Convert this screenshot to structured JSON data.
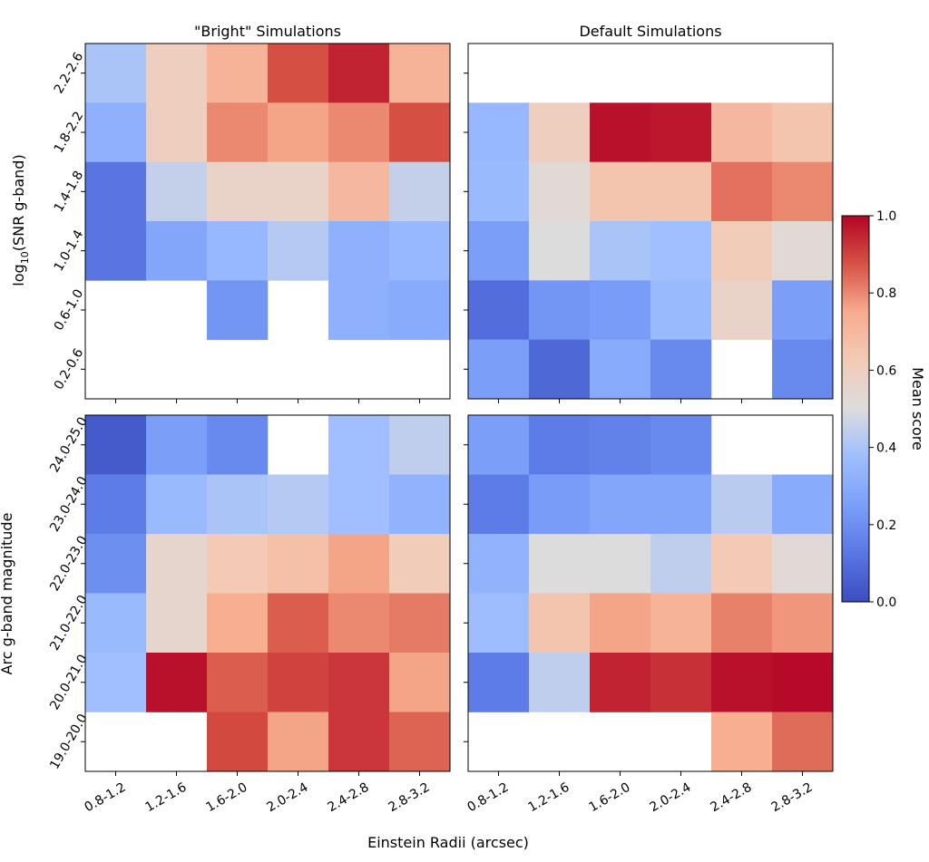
{
  "chart_data": [
    {
      "type": "heatmap",
      "id": "top-left",
      "title": "\"Bright\" Simulations",
      "ylabel_pre": "log",
      "ylabel_sub": "10",
      "ylabel_post": "(SNR g-band)",
      "x_categories": [
        "0.8-1.2",
        "1.2-1.6",
        "1.6-2.0",
        "2.0-2.4",
        "2.4-2.8",
        "2.8-3.2"
      ],
      "y_categories": [
        "2.2-2.6",
        "1.8-2.2",
        "1.4-1.8",
        "1.0-1.4",
        "0.6-1.0",
        "0.2-0.6"
      ],
      "values": [
        [
          0.4,
          0.6,
          0.72,
          0.88,
          0.95,
          0.72
        ],
        [
          0.32,
          0.6,
          0.8,
          0.76,
          0.8,
          0.88
        ],
        [
          0.12,
          0.45,
          0.57,
          0.57,
          0.7,
          0.45
        ],
        [
          0.12,
          0.28,
          0.35,
          0.42,
          0.32,
          0.35
        ],
        [
          null,
          null,
          0.22,
          null,
          0.32,
          0.3
        ],
        [
          null,
          null,
          null,
          null,
          null,
          null
        ]
      ]
    },
    {
      "type": "heatmap",
      "id": "top-right",
      "title": "Default Simulations",
      "x_categories": [
        "0.8-1.2",
        "1.2-1.6",
        "1.6-2.0",
        "2.0-2.4",
        "2.4-2.8",
        "2.8-3.2"
      ],
      "y_categories": [
        "2.2-2.6",
        "1.8-2.2",
        "1.4-1.8",
        "1.0-1.4",
        "0.6-1.0",
        "0.2-0.6"
      ],
      "values": [
        [
          null,
          null,
          null,
          null,
          null,
          null
        ],
        [
          0.35,
          0.6,
          0.98,
          0.97,
          0.7,
          0.65
        ],
        [
          0.36,
          0.52,
          0.65,
          0.65,
          0.83,
          0.8
        ],
        [
          0.25,
          0.5,
          0.4,
          0.38,
          0.62,
          0.52
        ],
        [
          0.1,
          0.22,
          0.24,
          0.36,
          0.57,
          0.25
        ],
        [
          0.25,
          0.08,
          0.3,
          0.18,
          null,
          0.18
        ]
      ]
    },
    {
      "type": "heatmap",
      "id": "bottom-left",
      "ylabel": "Arc g-band magnitude",
      "x_categories": [
        "0.8-1.2",
        "1.2-1.6",
        "1.6-2.0",
        "2.0-2.4",
        "2.4-2.8",
        "2.8-3.2"
      ],
      "y_categories": [
        "24.0-25.0",
        "23.0-24.0",
        "22.0-23.0",
        "21.0-22.0",
        "20.0-21.0",
        "19.0-20.0"
      ],
      "values": [
        [
          0.04,
          0.25,
          0.18,
          null,
          0.38,
          0.44
        ],
        [
          0.14,
          0.36,
          0.4,
          0.42,
          0.38,
          0.33
        ],
        [
          0.2,
          0.55,
          0.63,
          0.67,
          0.76,
          0.62
        ],
        [
          0.36,
          0.55,
          0.74,
          0.86,
          0.8,
          0.82
        ],
        [
          0.38,
          0.98,
          0.86,
          0.9,
          0.92,
          0.76
        ],
        [
          null,
          null,
          0.89,
          0.76,
          0.92,
          0.85
        ]
      ]
    },
    {
      "type": "heatmap",
      "id": "bottom-right",
      "x_categories": [
        "0.8-1.2",
        "1.2-1.6",
        "1.6-2.0",
        "2.0-2.4",
        "2.4-2.8",
        "2.8-3.2"
      ],
      "y_categories": [
        "24.0-25.0",
        "23.0-24.0",
        "22.0-23.0",
        "21.0-22.0",
        "20.0-21.0",
        "19.0-20.0"
      ],
      "values": [
        [
          0.25,
          0.14,
          0.16,
          0.18,
          null,
          null
        ],
        [
          0.14,
          0.24,
          0.28,
          0.28,
          0.43,
          0.3
        ],
        [
          0.33,
          0.5,
          0.5,
          0.44,
          0.63,
          0.52
        ],
        [
          0.37,
          0.65,
          0.76,
          0.72,
          0.81,
          0.78
        ],
        [
          0.14,
          0.44,
          0.95,
          0.93,
          0.98,
          0.99
        ],
        [
          null,
          null,
          null,
          null,
          0.74,
          0.84
        ]
      ]
    }
  ],
  "colorbar": {
    "label": "Mean score",
    "ticks": [
      0.0,
      0.2,
      0.4,
      0.6,
      0.8,
      1.0
    ],
    "tick_labels": [
      "0.0",
      "0.2",
      "0.4",
      "0.6",
      "0.8",
      "1.0"
    ],
    "colormap": "coolwarm",
    "range": [
      0,
      1
    ]
  },
  "shared_xlabel": "Einstein Radii (arcsec)"
}
